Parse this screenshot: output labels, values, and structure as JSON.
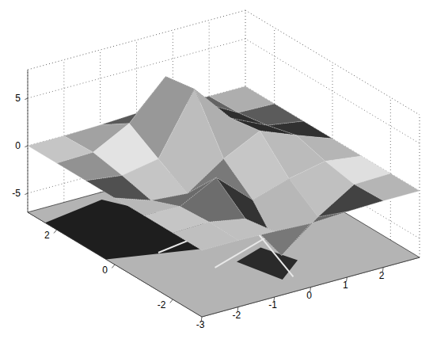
{
  "chart_data": {
    "type": "surface",
    "x": [
      -3,
      -2,
      -1,
      0,
      1,
      2,
      3
    ],
    "y": [
      -3,
      -2,
      -1,
      0,
      1,
      2,
      3
    ],
    "z": [
      [
        0,
        0,
        -0.1,
        -0.3,
        -0.1,
        0,
        0
      ],
      [
        0,
        0.1,
        -0.6,
        -5.5,
        -2.5,
        -0.1,
        0
      ],
      [
        0,
        -0.1,
        1.9,
        -1.5,
        -0.3,
        0.5,
        0
      ],
      [
        0,
        -1.3,
        -1.6,
        1.0,
        2.9,
        1.4,
        0
      ],
      [
        0,
        -0.5,
        0.2,
        6.5,
        2.4,
        0.6,
        0
      ],
      [
        0,
        0.1,
        2.1,
        6.0,
        2.2,
        0.1,
        0
      ],
      [
        0,
        0,
        0.1,
        0.3,
        0.1,
        0,
        0
      ]
    ],
    "xlim": [
      -3,
      3
    ],
    "ylim": [
      -3,
      3
    ],
    "zlim": [
      -7,
      8
    ],
    "xticks": [
      -3,
      -2,
      -1,
      0,
      1,
      2
    ],
    "yticks": [
      -2,
      0,
      2
    ],
    "zticks": [
      -5,
      0,
      5
    ],
    "grid": true
  }
}
